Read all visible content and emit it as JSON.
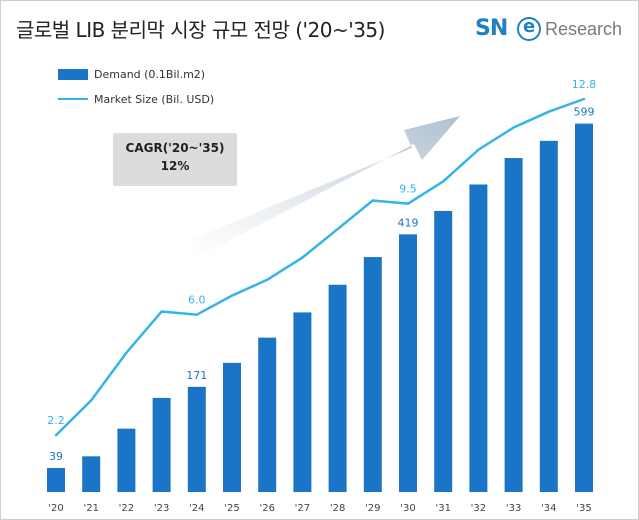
{
  "title": "글로벌 LIB 분리막 시장 규모 전망 ('20~'35)",
  "logo": {
    "sn": "SN",
    "e": "e",
    "research": "Research"
  },
  "legend": {
    "bar": "Demand (0.1Bil.m2)",
    "line": "Market Size (Bil. USD)"
  },
  "cagr": {
    "label": "CAGR('20~'35)",
    "value": "12%"
  },
  "colors": {
    "bar": "#1b75c6",
    "line": "#34b4ea",
    "arrow": "#b9cad8",
    "cagr_box": "#dcdcdc"
  },
  "chart_data": {
    "type": "bar",
    "categories": [
      "'20",
      "'21",
      "'22",
      "'23",
      "'24",
      "'25",
      "'26",
      "'27",
      "'28",
      "'29",
      "'30",
      "'31",
      "'32",
      "'33",
      "'34",
      "'35"
    ],
    "series": [
      {
        "name": "Demand (0.1Bil.m2)",
        "type": "bar",
        "values": [
          39,
          58,
          103,
          153,
          171,
          210,
          251,
          292,
          337,
          382,
          419,
          457,
          500,
          543,
          571,
          599
        ],
        "labeled": {
          "0": "39",
          "4": "171",
          "10": "419",
          "15": "599"
        }
      },
      {
        "name": "Market Size (Bil. USD)",
        "type": "line",
        "values": [
          2.2,
          3.3,
          4.8,
          6.1,
          6.0,
          6.6,
          7.1,
          7.8,
          8.7,
          9.6,
          9.5,
          10.2,
          11.2,
          11.9,
          12.4,
          12.8
        ],
        "labeled": {
          "0": "2.2",
          "4": "6.0",
          "10": "9.5",
          "15": "12.8"
        }
      }
    ],
    "legend_position": "top-left",
    "grid": false
  }
}
